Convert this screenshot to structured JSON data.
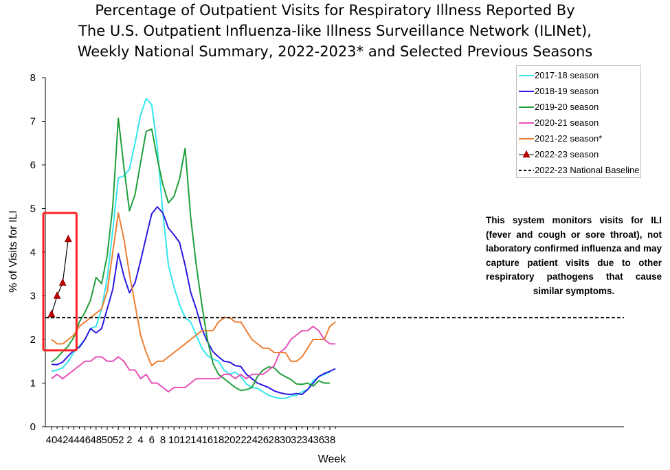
{
  "title_lines": [
    "Percentage of Outpatient Visits for Respiratory Illness Reported By",
    "The U.S. Outpatient Influenza-like Illness Surveillance Network (ILINet),",
    "Weekly National Summary, 2022-2023* and Selected Previous Seasons"
  ],
  "note": "This system monitors visits for ILI (fever and cough or sore throat), not laboratory confirmed influenza and may capture patient visits due to other respiratory pathogens that cause similar symptoms.",
  "chart_data": {
    "type": "line",
    "title": "Percentage of Outpatient Visits for Respiratory Illness Reported By The U.S. Outpatient Influenza-like Illness Surveillance Network (ILINet), Weekly National Summary, 2022-2023* and Selected Previous Seasons",
    "xlabel": "Week",
    "ylabel": "% of Visits for ILI",
    "ylim": [
      0,
      8
    ],
    "y_ticks": [
      "0",
      "1",
      "2",
      "3",
      "4",
      "5",
      "6",
      "7",
      "8"
    ],
    "x_tick_labels": [
      "40",
      "42",
      "44",
      "46",
      "48",
      "50",
      "52",
      "2",
      "4",
      "6",
      "8",
      "10",
      "12",
      "14",
      "16",
      "18",
      "20",
      "22",
      "24",
      "26",
      "28",
      "30",
      "32",
      "34",
      "36",
      "38"
    ],
    "x_index_note_free": true,
    "legend_position": "top-right",
    "highlight_box": {
      "x_from_week_index": 0,
      "x_to_week_index": 4,
      "y_from": 1.75,
      "y_to": 4.9,
      "color": "#ff2020"
    },
    "series": [
      {
        "name": "2017-18 season",
        "color": "#33e6ee",
        "values": [
          1.27,
          1.3,
          1.35,
          1.5,
          1.7,
          1.85,
          2.0,
          2.25,
          2.3,
          2.7,
          3.4,
          4.5,
          5.7,
          5.75,
          5.9,
          6.5,
          7.15,
          7.52,
          7.38,
          6.4,
          4.9,
          3.7,
          3.2,
          2.8,
          2.5,
          2.4,
          2.1,
          1.8,
          1.63,
          1.55,
          1.5,
          1.3,
          1.2,
          1.25,
          1.15,
          0.98,
          0.9,
          0.88,
          0.8,
          0.72,
          0.68,
          0.65,
          0.65,
          0.7,
          0.72,
          0.8,
          0.85,
          1.05,
          1.15,
          1.2,
          1.25
        ]
      },
      {
        "name": "2018-19 season",
        "color": "#2a17e0",
        "values": [
          1.43,
          1.42,
          1.48,
          1.62,
          1.75,
          1.82,
          2.0,
          2.25,
          2.15,
          2.25,
          2.7,
          3.15,
          3.97,
          3.45,
          3.07,
          3.3,
          3.8,
          4.35,
          4.88,
          5.04,
          4.9,
          4.55,
          4.4,
          4.22,
          3.7,
          3.08,
          2.7,
          2.25,
          1.95,
          1.72,
          1.6,
          1.5,
          1.48,
          1.4,
          1.38,
          1.2,
          1.1,
          1.0,
          0.95,
          0.9,
          0.82,
          0.78,
          0.75,
          0.74,
          0.76,
          0.74,
          0.85,
          1.0,
          1.15,
          1.22,
          1.27,
          1.33
        ]
      },
      {
        "name": "2019-20 season",
        "color": "#1f9e3a",
        "values": [
          1.48,
          1.58,
          1.72,
          1.85,
          2.05,
          2.4,
          2.62,
          2.9,
          3.42,
          3.28,
          3.92,
          5.05,
          7.07,
          5.95,
          4.95,
          5.32,
          6.05,
          6.77,
          6.82,
          6.15,
          5.55,
          5.13,
          5.28,
          5.68,
          6.38,
          4.8,
          3.7,
          2.8,
          2.0,
          1.45,
          1.2,
          1.1,
          1.0,
          0.9,
          0.83,
          0.85,
          0.9,
          1.15,
          1.3,
          1.37,
          1.35,
          1.22,
          1.15,
          1.08,
          0.98,
          0.97,
          1.0,
          0.93,
          1.05,
          1.0,
          1.0
        ]
      },
      {
        "name": "2020-21 season",
        "color": "#e84fb8",
        "values": [
          1.1,
          1.2,
          1.1,
          1.2,
          1.3,
          1.4,
          1.5,
          1.5,
          1.6,
          1.6,
          1.5,
          1.5,
          1.6,
          1.5,
          1.3,
          1.3,
          1.1,
          1.2,
          1.0,
          1.0,
          0.9,
          0.8,
          0.9,
          0.9,
          0.9,
          1.0,
          1.1,
          1.1,
          1.1,
          1.1,
          1.1,
          1.2,
          1.2,
          1.1,
          1.2,
          1.1,
          1.2,
          1.2,
          1.2,
          1.3,
          1.4,
          1.7,
          1.8,
          2.0,
          2.1,
          2.2,
          2.2,
          2.3,
          2.2,
          2.0,
          1.9,
          1.9
        ]
      },
      {
        "name": "2021-22 season*",
        "color": "#ee7d31",
        "values": [
          2.0,
          1.9,
          1.9,
          2.0,
          2.1,
          2.3,
          2.4,
          2.5,
          2.6,
          2.7,
          3.1,
          4.0,
          4.9,
          4.3,
          3.5,
          2.8,
          2.1,
          1.7,
          1.4,
          1.5,
          1.5,
          1.6,
          1.7,
          1.8,
          1.9,
          2.0,
          2.1,
          2.2,
          2.2,
          2.2,
          2.4,
          2.5,
          2.5,
          2.4,
          2.4,
          2.2,
          2.0,
          1.9,
          1.8,
          1.8,
          1.7,
          1.7,
          1.7,
          1.5,
          1.5,
          1.6,
          1.8,
          2.0,
          2.0,
          2.0,
          2.3,
          2.4
        ]
      },
      {
        "name": "2022-23 season",
        "color": "#000000",
        "marker_color": "#c00000",
        "marker": "triangle",
        "values": [
          2.58,
          3.0,
          3.3,
          4.3
        ]
      },
      {
        "name": "2022-23 National Baseline",
        "color": "#000000",
        "dashed": true,
        "value": 2.5
      }
    ]
  }
}
